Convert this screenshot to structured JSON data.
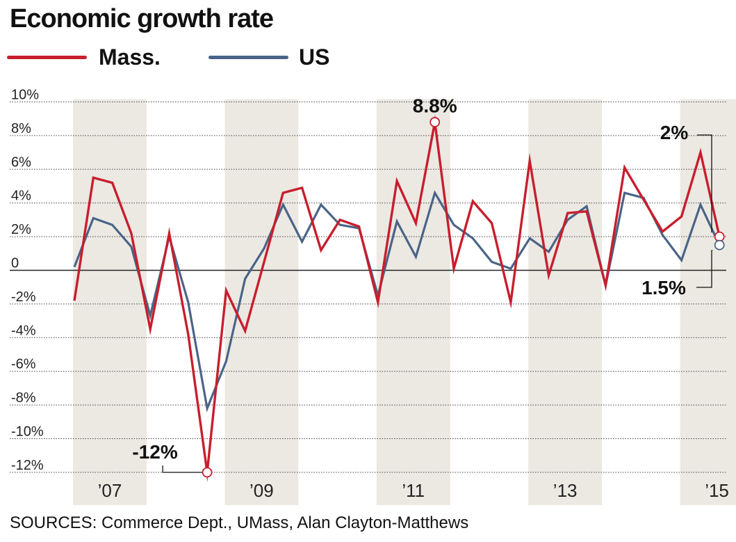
{
  "chart_data": {
    "type": "line",
    "title": "Economic growth rate",
    "source": "SOURCES: Commerce Dept., UMass, Alan Clayton-Matthews",
    "ylim": [
      -12.5,
      10
    ],
    "yticks": [
      {
        "value": 10,
        "label": "10%"
      },
      {
        "value": 8,
        "label": "8%"
      },
      {
        "value": 6,
        "label": "6%"
      },
      {
        "value": 4,
        "label": "4%"
      },
      {
        "value": 2,
        "label": "2%"
      },
      {
        "value": 0,
        "label": "0"
      },
      {
        "value": -2,
        "label": "-2%"
      },
      {
        "value": -4,
        "label": "-4%"
      },
      {
        "value": -6,
        "label": "-6%"
      },
      {
        "value": -8,
        "label": "-8%"
      },
      {
        "value": -10,
        "label": "-10%"
      },
      {
        "value": -12,
        "label": "-12%"
      }
    ],
    "x_periods": [
      "2007 Q1",
      "2007 Q2",
      "2007 Q3",
      "2007 Q4",
      "2008 Q1",
      "2008 Q2",
      "2008 Q3",
      "2008 Q4",
      "2009 Q1",
      "2009 Q2",
      "2009 Q3",
      "2009 Q4",
      "2010 Q1",
      "2010 Q2",
      "2010 Q3",
      "2010 Q4",
      "2011 Q1",
      "2011 Q2",
      "2011 Q3",
      "2011 Q4",
      "2012 Q1",
      "2012 Q2",
      "2012 Q3",
      "2012 Q4",
      "2013 Q1",
      "2013 Q2",
      "2013 Q3",
      "2013 Q4",
      "2014 Q1",
      "2014 Q2",
      "2014 Q3",
      "2014 Q4",
      "2015 Q1",
      "2015 Q2",
      "2015 Q3",
      "2015 Q4"
    ],
    "xticks": [
      {
        "year": 2007,
        "label": "’07"
      },
      {
        "year": 2009,
        "label": "’09"
      },
      {
        "year": 2011,
        "label": "’11"
      },
      {
        "year": 2013,
        "label": "’13"
      },
      {
        "year": 2015,
        "label": "’15"
      }
    ],
    "shaded_years": [
      2007,
      2009,
      2011,
      2013,
      2015
    ],
    "series": [
      {
        "name": "Mass.",
        "color": "#c81e2d",
        "values": [
          -1.8,
          5.5,
          5.2,
          2.2,
          -3.5,
          2.2,
          -3.8,
          -12.0,
          -1.2,
          -3.6,
          0.5,
          4.6,
          4.9,
          1.2,
          3.0,
          2.6,
          -1.9,
          5.3,
          2.8,
          8.8,
          0.1,
          4.1,
          2.8,
          -1.9,
          6.5,
          -0.3,
          3.4,
          3.5,
          -0.9,
          6.1,
          4.2,
          2.3,
          3.2,
          7.0,
          2.0
        ]
      },
      {
        "name": "US",
        "color": "#4a6487",
        "values": [
          0.2,
          3.1,
          2.7,
          1.4,
          -2.7,
          2.0,
          -1.9,
          -8.2,
          -5.4,
          -0.5,
          1.3,
          3.9,
          1.7,
          3.9,
          2.7,
          2.5,
          -1.5,
          2.9,
          0.8,
          4.6,
          2.7,
          1.9,
          0.5,
          0.1,
          1.9,
          1.1,
          3.0,
          3.8,
          -0.9,
          4.6,
          4.3,
          2.1,
          0.6,
          3.9,
          1.5
        ]
      }
    ],
    "annotations": [
      {
        "label": "8.8%",
        "series": "Mass.",
        "index": 19,
        "value": 8.8
      },
      {
        "label": "-12%",
        "series": "Mass.",
        "index": 7,
        "value": -12.0
      },
      {
        "label": "2%",
        "series": "Mass.",
        "index": 34,
        "value": 2.0
      },
      {
        "label": "1.5%",
        "series": "US",
        "index": 34,
        "value": 1.5
      }
    ]
  }
}
